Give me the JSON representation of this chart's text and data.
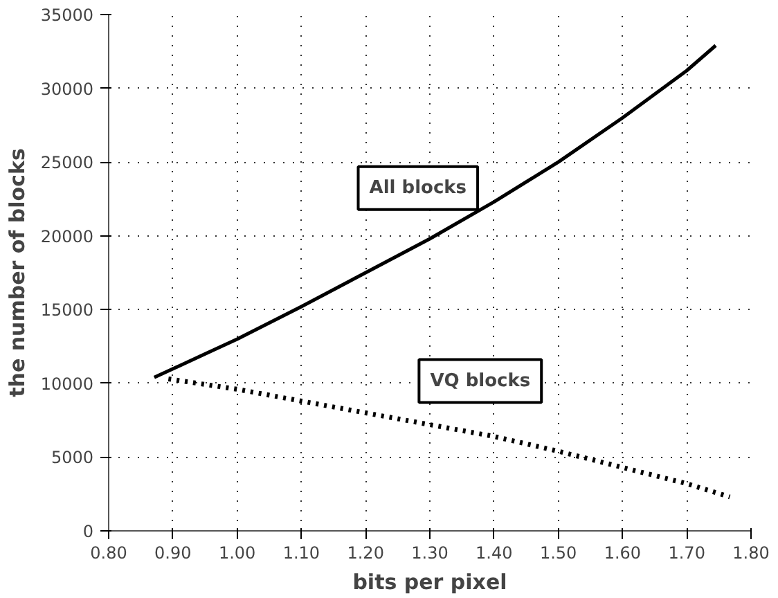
{
  "chart_data": {
    "type": "line",
    "xlabel": "bits per pixel",
    "ylabel": "the number of blocks",
    "xlim": [
      0.8,
      1.8
    ],
    "xticks": [
      {
        "value": 0.8,
        "label": "0.80"
      },
      {
        "value": 0.9,
        "label": "0.90"
      },
      {
        "value": 1.0,
        "label": "1.00"
      },
      {
        "value": 1.1,
        "label": "1.10"
      },
      {
        "value": 1.2,
        "label": "1.20"
      },
      {
        "value": 1.3,
        "label": "1.30"
      },
      {
        "value": 1.4,
        "label": "1.40"
      },
      {
        "value": 1.5,
        "label": "1.50"
      },
      {
        "value": 1.6,
        "label": "1.60"
      },
      {
        "value": 1.7,
        "label": "1.70"
      },
      {
        "value": 1.8,
        "label": "1.80"
      }
    ],
    "ylim": [
      0,
      35000
    ],
    "yticks": [
      0,
      5000,
      10000,
      15000,
      20000,
      25000,
      30000,
      35000
    ],
    "grid": true,
    "series": [
      {
        "name": "All blocks",
        "color": "#000000",
        "line_style": "solid",
        "x": [
          0.871,
          1.0,
          1.1,
          1.2,
          1.3,
          1.4,
          1.5,
          1.6,
          1.7,
          1.745
        ],
        "values": [
          10400,
          13000,
          15200,
          17500,
          19800,
          22300,
          25000,
          28000,
          31200,
          32900
        ]
      },
      {
        "name": "VQ blocks",
        "color": "#000000",
        "line_style": "dotted",
        "x": [
          0.893,
          1.0,
          1.1,
          1.2,
          1.3,
          1.4,
          1.5,
          1.6,
          1.7,
          1.767
        ],
        "values": [
          10300,
          9600,
          8800,
          8000,
          7200,
          6400,
          5400,
          4300,
          3200,
          2300
        ]
      }
    ]
  }
}
